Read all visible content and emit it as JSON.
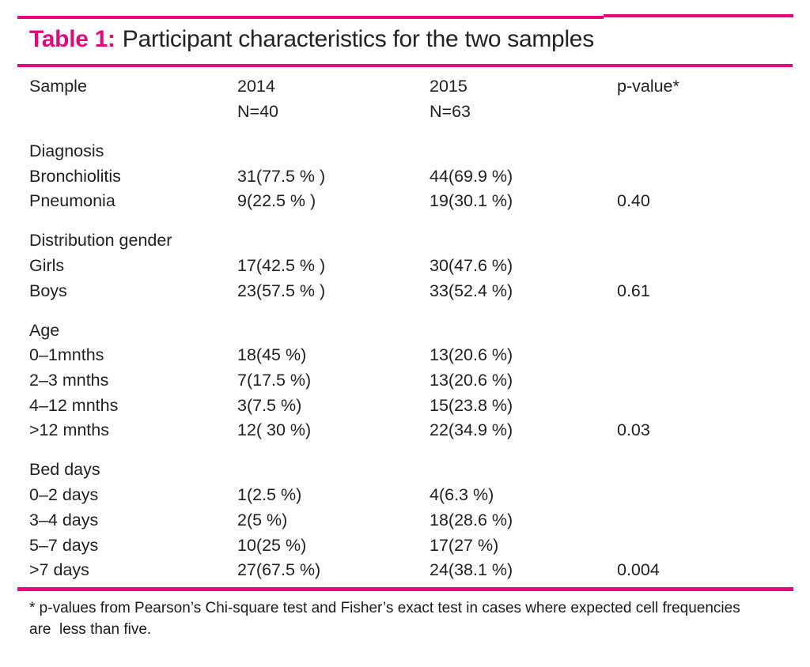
{
  "accent_color": "#e6077e",
  "text_color": "#231f20",
  "title": {
    "label": "Table 1:",
    "text": "Participant characteristics for the two samples"
  },
  "table": {
    "header": {
      "sample": "Sample",
      "col2014": "2014",
      "col2014_n": "N=40",
      "col2015": "2015",
      "col2015_n": "N=63",
      "pvalue": "p-value*"
    },
    "sections": [
      {
        "name": "Diagnosis",
        "rows": [
          {
            "label": "Bronchiolitis",
            "y2014": "31(77.5 % )",
            "y2015": "44(69.9 %)"
          },
          {
            "label": "Pneumonia",
            "y2014": "9(22.5 % )",
            "y2015": "19(30.1 %)",
            "p": "0.40"
          }
        ]
      },
      {
        "name": "Distribution gender",
        "rows": [
          {
            "label": "Girls",
            "y2014": "17(42.5 % )",
            "y2015": "30(47.6 %)"
          },
          {
            "label": "Boys",
            "y2014": "23(57.5 % )",
            "y2015": "33(52.4 %)",
            "p": "0.61"
          }
        ]
      },
      {
        "name": "Age",
        "rows": [
          {
            "label": "0–1mnths",
            "y2014": "18(45 %)",
            "y2015": "13(20.6 %)"
          },
          {
            "label": "2–3 mnths",
            "y2014": "7(17.5 %)",
            "y2015": "13(20.6 %)"
          },
          {
            "label": "4–12 mnths",
            "y2014": "3(7.5 %)",
            "y2015": "15(23.8 %)"
          },
          {
            "label": ">12 mnths",
            "y2014": "12( 30 %)",
            "y2015": "22(34.9 %)",
            "p": "0.03"
          }
        ]
      },
      {
        "name": "Bed days",
        "rows": [
          {
            "label": "0–2 days",
            "y2014": "1(2.5 %)",
            "y2015": "4(6.3 %)"
          },
          {
            "label": "3–4 days",
            "y2014": "2(5 %)",
            "y2015": "18(28.6 %)"
          },
          {
            "label": "5–7 days",
            "y2014": "10(25 %)",
            "y2015": "17(27 %)"
          },
          {
            "label": ">7 days",
            "y2014": "27(67.5 %)",
            "y2015": "24(38.1 %)",
            "p": "0.004"
          }
        ]
      }
    ]
  },
  "footnote": {
    "line1": "* p-values from Pearson’s Chi-square test and Fisher’s exact test in cases where expected cell frequencies",
    "line2": "are  less than five."
  }
}
